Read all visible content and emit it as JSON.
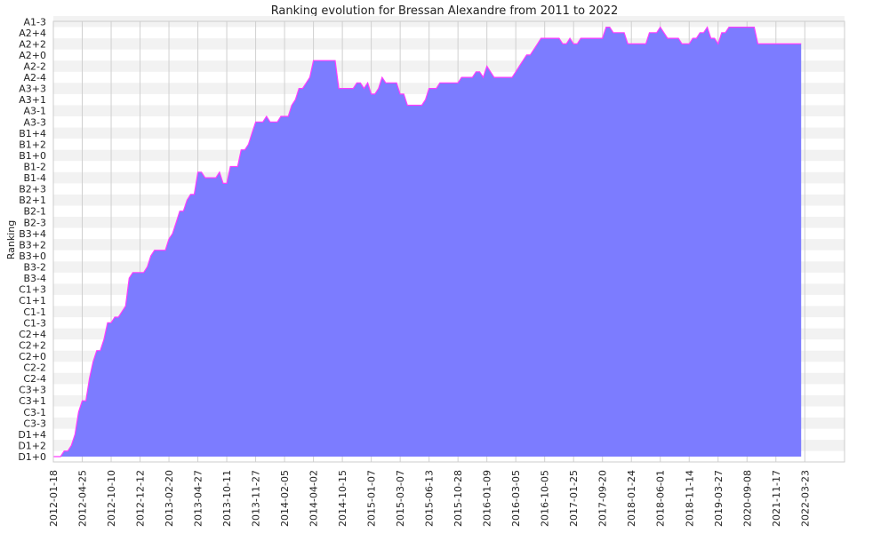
{
  "chart_data": {
    "type": "area",
    "title": "Ranking evolution for Bressan Alexandre from 2011 to 2022",
    "xlabel": "",
    "ylabel": "Ranking",
    "grid": true,
    "fill_color": "#7c7cff",
    "line_color": "#ff3cff",
    "band_color": "#f2f2f2",
    "y_categories": [
      "D1+0",
      "D1+2",
      "D1+4",
      "C3-3",
      "C3-1",
      "C3+1",
      "C3+3",
      "C2-4",
      "C2-2",
      "C2+0",
      "C2+2",
      "C2+4",
      "C1-3",
      "C1-1",
      "C1+1",
      "C1+3",
      "B3-4",
      "B3-2",
      "B3+0",
      "B3+2",
      "B3+4",
      "B2-3",
      "B2-1",
      "B2+1",
      "B2+3",
      "B1-4",
      "B1-2",
      "B1+0",
      "B1+2",
      "B1+4",
      "A3-3",
      "A3-1",
      "A3+1",
      "A3+3",
      "A2-4",
      "A2-2",
      "A2+0",
      "A2+2",
      "A2+4",
      "A1-3"
    ],
    "x_tick_labels": [
      "2012-01-18",
      "2012-04-25",
      "2012-10-10",
      "2012-12-12",
      "2013-02-20",
      "2013-04-27",
      "2013-10-11",
      "2013-11-27",
      "2014-02-05",
      "2014-04-02",
      "2014-10-15",
      "2015-01-07",
      "2015-03-07",
      "2015-06-13",
      "2015-10-28",
      "2016-01-09",
      "2016-03-05",
      "2016-10-05",
      "2017-01-25",
      "2017-09-20",
      "2018-01-24",
      "2018-06-01",
      "2018-11-14",
      "2019-03-27",
      "2020-09-08",
      "2021-11-17",
      "2022-03-23"
    ],
    "x_range": [
      0,
      207
    ],
    "x_ticks_at": [
      0,
      8,
      16,
      24,
      32,
      40,
      48,
      56,
      64,
      72,
      80,
      88,
      96,
      104,
      112,
      120,
      128,
      136,
      144,
      152,
      160,
      168,
      176,
      184,
      192,
      200,
      208
    ],
    "points": [
      [
        0,
        0
      ],
      [
        2,
        0
      ],
      [
        3,
        0.5
      ],
      [
        4,
        0.5
      ],
      [
        5,
        1
      ],
      [
        6,
        2
      ],
      [
        7,
        4
      ],
      [
        8,
        5
      ],
      [
        9,
        5
      ],
      [
        10,
        7
      ],
      [
        11,
        8.5
      ],
      [
        12,
        9.5
      ],
      [
        13,
        9.5
      ],
      [
        14,
        10.5
      ],
      [
        15,
        12
      ],
      [
        16,
        12
      ],
      [
        17,
        12.5
      ],
      [
        18,
        12.5
      ],
      [
        19,
        13
      ],
      [
        20,
        13.5
      ],
      [
        21,
        16
      ],
      [
        22,
        16.5
      ],
      [
        23,
        16.5
      ],
      [
        24,
        16.5
      ],
      [
        25,
        16.5
      ],
      [
        26,
        17
      ],
      [
        27,
        18
      ],
      [
        28,
        18.5
      ],
      [
        29,
        18.5
      ],
      [
        30,
        18.5
      ],
      [
        31,
        18.5
      ],
      [
        32,
        19.5
      ],
      [
        33,
        20
      ],
      [
        34,
        21
      ],
      [
        35,
        22
      ],
      [
        36,
        22
      ],
      [
        37,
        23
      ],
      [
        38,
        23.5
      ],
      [
        39,
        23.5
      ],
      [
        40,
        25.5
      ],
      [
        41,
        25.5
      ],
      [
        42,
        25
      ],
      [
        43,
        25
      ],
      [
        44,
        25
      ],
      [
        45,
        25
      ],
      [
        46,
        25.5
      ],
      [
        47,
        24.5
      ],
      [
        48,
        24.5
      ],
      [
        49,
        26
      ],
      [
        50,
        26
      ],
      [
        51,
        26
      ],
      [
        52,
        27.5
      ],
      [
        53,
        27.5
      ],
      [
        54,
        28
      ],
      [
        55,
        29
      ],
      [
        56,
        30
      ],
      [
        57,
        30
      ],
      [
        58,
        30
      ],
      [
        59,
        30.5
      ],
      [
        60,
        30
      ],
      [
        61,
        30
      ],
      [
        62,
        30
      ],
      [
        63,
        30.5
      ],
      [
        64,
        30.5
      ],
      [
        65,
        30.5
      ],
      [
        66,
        31.5
      ],
      [
        67,
        32
      ],
      [
        68,
        33
      ],
      [
        69,
        33
      ],
      [
        70,
        33.5
      ],
      [
        71,
        34
      ],
      [
        72,
        35.5
      ],
      [
        73,
        35.5
      ],
      [
        74,
        35.5
      ],
      [
        75,
        35.5
      ],
      [
        76,
        35.5
      ],
      [
        77,
        35.5
      ],
      [
        78,
        35.5
      ],
      [
        79,
        33
      ],
      [
        80,
        33
      ],
      [
        81,
        33
      ],
      [
        82,
        33
      ],
      [
        83,
        33
      ],
      [
        84,
        33.5
      ],
      [
        85,
        33.5
      ],
      [
        86,
        33
      ],
      [
        87,
        33.5
      ],
      [
        88,
        32.5
      ],
      [
        89,
        32.5
      ],
      [
        90,
        33
      ],
      [
        91,
        34
      ],
      [
        92,
        33.5
      ],
      [
        93,
        33.5
      ],
      [
        94,
        33.5
      ],
      [
        95,
        33.5
      ],
      [
        96,
        32.5
      ],
      [
        97,
        32.5
      ],
      [
        98,
        31.5
      ],
      [
        99,
        31.5
      ],
      [
        100,
        31.5
      ],
      [
        101,
        31.5
      ],
      [
        102,
        31.5
      ],
      [
        103,
        32
      ],
      [
        104,
        33
      ],
      [
        105,
        33
      ],
      [
        106,
        33
      ],
      [
        107,
        33.5
      ],
      [
        108,
        33.5
      ],
      [
        109,
        33.5
      ],
      [
        110,
        33.5
      ],
      [
        111,
        33.5
      ],
      [
        112,
        33.5
      ],
      [
        113,
        34
      ],
      [
        114,
        34
      ],
      [
        115,
        34
      ],
      [
        116,
        34
      ],
      [
        117,
        34.5
      ],
      [
        118,
        34.5
      ],
      [
        119,
        34
      ],
      [
        120,
        35
      ],
      [
        121,
        34.5
      ],
      [
        122,
        34
      ],
      [
        123,
        34
      ],
      [
        124,
        34
      ],
      [
        125,
        34
      ],
      [
        126,
        34
      ],
      [
        127,
        34
      ],
      [
        128,
        34.5
      ],
      [
        129,
        35
      ],
      [
        130,
        35.5
      ],
      [
        131,
        36
      ],
      [
        132,
        36
      ],
      [
        133,
        36.5
      ],
      [
        134,
        37
      ],
      [
        135,
        37.5
      ],
      [
        136,
        37.5
      ],
      [
        137,
        37.5
      ],
      [
        138,
        37.5
      ],
      [
        139,
        37.5
      ],
      [
        140,
        37.5
      ],
      [
        141,
        37
      ],
      [
        142,
        37
      ],
      [
        143,
        37.5
      ],
      [
        144,
        37
      ],
      [
        145,
        37
      ],
      [
        146,
        37.5
      ],
      [
        147,
        37.5
      ],
      [
        148,
        37.5
      ],
      [
        149,
        37.5
      ],
      [
        150,
        37.5
      ],
      [
        151,
        37.5
      ],
      [
        152,
        37.5
      ],
      [
        153,
        38.5
      ],
      [
        154,
        38.5
      ],
      [
        155,
        38
      ],
      [
        156,
        38
      ],
      [
        157,
        38
      ],
      [
        158,
        38
      ],
      [
        159,
        37
      ],
      [
        160,
        37
      ],
      [
        161,
        37
      ],
      [
        162,
        37
      ],
      [
        163,
        37
      ],
      [
        164,
        37
      ],
      [
        165,
        38
      ],
      [
        166,
        38
      ],
      [
        167,
        38
      ],
      [
        168,
        38.5
      ],
      [
        169,
        38
      ],
      [
        170,
        37.5
      ],
      [
        171,
        37.5
      ],
      [
        172,
        37.5
      ],
      [
        173,
        37.5
      ],
      [
        174,
        37
      ],
      [
        175,
        37
      ],
      [
        176,
        37
      ],
      [
        177,
        37.5
      ],
      [
        178,
        37.5
      ],
      [
        179,
        38
      ],
      [
        180,
        38
      ],
      [
        181,
        38.5
      ],
      [
        182,
        37.5
      ],
      [
        183,
        37.5
      ],
      [
        184,
        37
      ],
      [
        185,
        38
      ],
      [
        186,
        38
      ],
      [
        187,
        38.5
      ],
      [
        188,
        38.5
      ],
      [
        189,
        38.5
      ],
      [
        190,
        38.5
      ],
      [
        191,
        38.5
      ],
      [
        192,
        38.5
      ],
      [
        193,
        38.5
      ],
      [
        194,
        38.5
      ],
      [
        195,
        37
      ],
      [
        196,
        37
      ],
      [
        197,
        37
      ],
      [
        198,
        37
      ],
      [
        199,
        37
      ],
      [
        200,
        37
      ],
      [
        201,
        37
      ],
      [
        202,
        37
      ],
      [
        203,
        37
      ],
      [
        204,
        37
      ],
      [
        205,
        37
      ],
      [
        206,
        37
      ],
      [
        207,
        37
      ]
    ]
  }
}
